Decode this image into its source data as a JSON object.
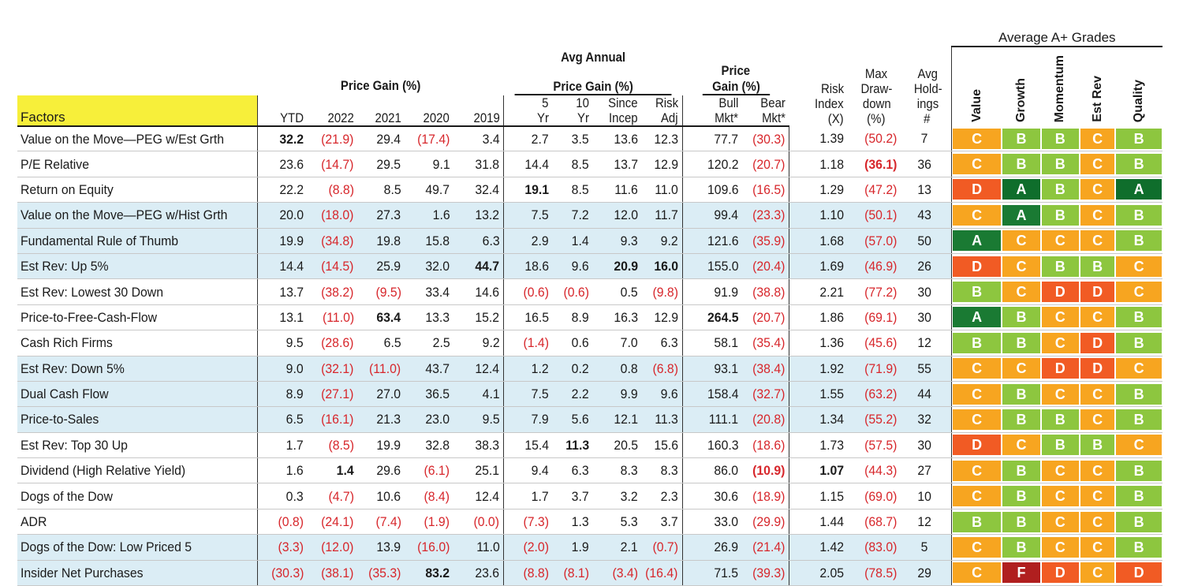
{
  "headers": {
    "factors": "Factors",
    "price_gain_group": "Price Gain (%)",
    "avg_annual_group_line1": "Avg Annual",
    "avg_annual_group_line2": "Price Gain (%)",
    "mkt_group_line1": "Price",
    "mkt_group_line2": "Gain (%)",
    "avg_grades_group": "Average A+ Grades",
    "ytd": "YTD",
    "y2022": "2022",
    "y2021": "2021",
    "y2020": "2020",
    "y2019": "2019",
    "yr5_1": "5",
    "yr5_2": "Yr",
    "yr10_1": "10",
    "yr10_2": "Yr",
    "since_1": "Since",
    "since_2": "Incep",
    "risk_adj_1": "Risk",
    "risk_adj_2": "Adj",
    "bull_1": "Bull",
    "bull_2": "Mkt*",
    "bear_1": "Bear",
    "bear_2": "Mkt*",
    "risk_index_1": "Risk",
    "risk_index_2": "Index",
    "risk_index_3": "(X)",
    "max_dd_1": "Max",
    "max_dd_2": "Draw-",
    "max_dd_3": "down",
    "max_dd_4": "(%)",
    "holdings_1": "Avg",
    "holdings_2": "Hold-",
    "holdings_3": "ings",
    "holdings_4": "#",
    "g_value": "Value",
    "g_growth": "Growth",
    "g_momentum": "Momentum",
    "g_estrev": "Est Rev",
    "g_quality": "Quality"
  },
  "rows": [
    {
      "name": "Value on the Move—PEG w/Est Grth",
      "ytd": "32.2",
      "y2022": "(21.9)",
      "y2021": "29.4",
      "y2020": "(17.4)",
      "y2019": "3.4",
      "yr5": "2.7",
      "yr10": "3.5",
      "since": "13.6",
      "riskadj": "12.3",
      "bull": "77.7",
      "bear": "(30.3)",
      "riskidx": "1.39",
      "maxdd": "(50.2)",
      "hold": "7",
      "grades": [
        "C",
        "B",
        "B",
        "C",
        "B"
      ]
    },
    {
      "name": "P/E Relative",
      "ytd": "23.6",
      "y2022": "(14.7)",
      "y2021": "29.5",
      "y2020": "9.1",
      "y2019": "31.8",
      "yr5": "14.4",
      "yr10": "8.5",
      "since": "13.7",
      "riskadj": "12.9",
      "bull": "120.2",
      "bear": "(20.7)",
      "riskidx": "1.18",
      "maxdd": "(36.1)",
      "hold": "36",
      "grades": [
        "C",
        "B",
        "B",
        "C",
        "B"
      ]
    },
    {
      "name": "Return on Equity",
      "ytd": "22.2",
      "y2022": "(8.8)",
      "y2021": "8.5",
      "y2020": "49.7",
      "y2019": "32.4",
      "yr5": "19.1",
      "yr10": "8.5",
      "since": "11.6",
      "riskadj": "11.0",
      "bull": "109.6",
      "bear": "(16.5)",
      "riskidx": "1.29",
      "maxdd": "(47.2)",
      "hold": "13",
      "grades": [
        "D",
        "A",
        "B",
        "C",
        "A"
      ]
    },
    {
      "name": "Value on the Move—PEG w/Hist Grth",
      "ytd": "20.0",
      "y2022": "(18.0)",
      "y2021": "27.3",
      "y2020": "1.6",
      "y2019": "13.2",
      "yr5": "7.5",
      "yr10": "7.2",
      "since": "12.0",
      "riskadj": "11.7",
      "bull": "99.4",
      "bear": "(23.3)",
      "riskidx": "1.10",
      "maxdd": "(50.1)",
      "hold": "43",
      "grades": [
        "C",
        "A",
        "B",
        "C",
        "B"
      ]
    },
    {
      "name": "Fundamental Rule of Thumb",
      "ytd": "19.9",
      "y2022": "(34.8)",
      "y2021": "19.8",
      "y2020": "15.8",
      "y2019": "6.3",
      "yr5": "2.9",
      "yr10": "1.4",
      "since": "9.3",
      "riskadj": "9.2",
      "bull": "121.6",
      "bear": "(35.9)",
      "riskidx": "1.68",
      "maxdd": "(57.0)",
      "hold": "50",
      "grades": [
        "A",
        "C",
        "C",
        "C",
        "B"
      ]
    },
    {
      "name": "Est Rev: Up 5%",
      "ytd": "14.4",
      "y2022": "(14.5)",
      "y2021": "25.9",
      "y2020": "32.0",
      "y2019": "44.7",
      "yr5": "18.6",
      "yr10": "9.6",
      "since": "20.9",
      "riskadj": "16.0",
      "bull": "155.0",
      "bear": "(20.4)",
      "riskidx": "1.69",
      "maxdd": "(46.9)",
      "hold": "26",
      "grades": [
        "D",
        "C",
        "B",
        "B",
        "C"
      ]
    },
    {
      "name": "Est Rev: Lowest 30 Down",
      "ytd": "13.7",
      "y2022": "(38.2)",
      "y2021": "(9.5)",
      "y2020": "33.4",
      "y2019": "14.6",
      "yr5": "(0.6)",
      "yr10": "(0.6)",
      "since": "0.5",
      "riskadj": "(9.8)",
      "bull": "91.9",
      "bear": "(38.8)",
      "riskidx": "2.21",
      "maxdd": "(77.2)",
      "hold": "30",
      "grades": [
        "B",
        "C",
        "D",
        "D",
        "C"
      ]
    },
    {
      "name": "Price-to-Free-Cash-Flow",
      "ytd": "13.1",
      "y2022": "(11.0)",
      "y2021": "63.4",
      "y2020": "13.3",
      "y2019": "15.2",
      "yr5": "16.5",
      "yr10": "8.9",
      "since": "16.3",
      "riskadj": "12.9",
      "bull": "264.5",
      "bear": "(20.7)",
      "riskidx": "1.86",
      "maxdd": "(69.1)",
      "hold": "30",
      "grades": [
        "A",
        "B",
        "C",
        "C",
        "B"
      ]
    },
    {
      "name": "Cash Rich Firms",
      "ytd": "9.5",
      "y2022": "(28.6)",
      "y2021": "6.5",
      "y2020": "2.5",
      "y2019": "9.2",
      "yr5": "(1.4)",
      "yr10": "0.6",
      "since": "7.0",
      "riskadj": "6.3",
      "bull": "58.1",
      "bear": "(35.4)",
      "riskidx": "1.36",
      "maxdd": "(45.6)",
      "hold": "12",
      "grades": [
        "B",
        "B",
        "C",
        "D",
        "B"
      ]
    },
    {
      "name": "Est Rev: Down 5%",
      "ytd": "9.0",
      "y2022": "(32.1)",
      "y2021": "(11.0)",
      "y2020": "43.7",
      "y2019": "12.4",
      "yr5": "1.2",
      "yr10": "0.2",
      "since": "0.8",
      "riskadj": "(6.8)",
      "bull": "93.1",
      "bear": "(38.4)",
      "riskidx": "1.92",
      "maxdd": "(71.9)",
      "hold": "55",
      "grades": [
        "C",
        "C",
        "D",
        "D",
        "C"
      ]
    },
    {
      "name": "Dual Cash Flow",
      "ytd": "8.9",
      "y2022": "(27.1)",
      "y2021": "27.0",
      "y2020": "36.5",
      "y2019": "4.1",
      "yr5": "7.5",
      "yr10": "2.2",
      "since": "9.9",
      "riskadj": "9.6",
      "bull": "158.4",
      "bear": "(32.7)",
      "riskidx": "1.55",
      "maxdd": "(63.2)",
      "hold": "44",
      "grades": [
        "C",
        "B",
        "C",
        "C",
        "B"
      ]
    },
    {
      "name": "Price-to-Sales",
      "ytd": "6.5",
      "y2022": "(16.1)",
      "y2021": "21.3",
      "y2020": "23.0",
      "y2019": "9.5",
      "yr5": "7.9",
      "yr10": "5.6",
      "since": "12.1",
      "riskadj": "11.3",
      "bull": "111.1",
      "bear": "(20.8)",
      "riskidx": "1.34",
      "maxdd": "(55.2)",
      "hold": "32",
      "grades": [
        "C",
        "B",
        "B",
        "C",
        "B"
      ]
    },
    {
      "name": "Est Rev: Top 30 Up",
      "ytd": "1.7",
      "y2022": "(8.5)",
      "y2021": "19.9",
      "y2020": "32.8",
      "y2019": "38.3",
      "yr5": "15.4",
      "yr10": "11.3",
      "since": "20.5",
      "riskadj": "15.6",
      "bull": "160.3",
      "bear": "(18.6)",
      "riskidx": "1.73",
      "maxdd": "(57.5)",
      "hold": "30",
      "grades": [
        "D",
        "C",
        "B",
        "B",
        "C"
      ]
    },
    {
      "name": "Dividend (High Relative Yield)",
      "ytd": "1.6",
      "y2022": "1.4",
      "y2021": "29.6",
      "y2020": "(6.1)",
      "y2019": "25.1",
      "yr5": "9.4",
      "yr10": "6.3",
      "since": "8.3",
      "riskadj": "8.3",
      "bull": "86.0",
      "bear": "(10.9)",
      "riskidx": "1.07",
      "maxdd": "(44.3)",
      "hold": "27",
      "grades": [
        "C",
        "B",
        "C",
        "C",
        "B"
      ]
    },
    {
      "name": "Dogs of the Dow",
      "ytd": "0.3",
      "y2022": "(4.7)",
      "y2021": "10.6",
      "y2020": "(8.4)",
      "y2019": "12.4",
      "yr5": "1.7",
      "yr10": "3.7",
      "since": "3.2",
      "riskadj": "2.3",
      "bull": "30.6",
      "bear": "(18.9)",
      "riskidx": "1.15",
      "maxdd": "(69.0)",
      "hold": "10",
      "grades": [
        "C",
        "B",
        "C",
        "C",
        "B"
      ]
    },
    {
      "name": "ADR",
      "ytd": "(0.8)",
      "y2022": "(24.1)",
      "y2021": "(7.4)",
      "y2020": "(1.9)",
      "y2019": "(0.0)",
      "yr5": "(7.3)",
      "yr10": "1.3",
      "since": "5.3",
      "riskadj": "3.7",
      "bull": "33.0",
      "bear": "(29.9)",
      "riskidx": "1.44",
      "maxdd": "(68.7)",
      "hold": "12",
      "grades": [
        "B",
        "B",
        "C",
        "C",
        "B"
      ]
    },
    {
      "name": "Dogs of the Dow: Low Priced 5",
      "ytd": "(3.3)",
      "y2022": "(12.0)",
      "y2021": "13.9",
      "y2020": "(16.0)",
      "y2019": "11.0",
      "yr5": "(2.0)",
      "yr10": "1.9",
      "since": "2.1",
      "riskadj": "(0.7)",
      "bull": "26.9",
      "bear": "(21.4)",
      "riskidx": "1.42",
      "maxdd": "(83.0)",
      "hold": "5",
      "grades": [
        "C",
        "B",
        "C",
        "C",
        "B"
      ]
    },
    {
      "name": "Insider Net Purchases",
      "ytd": "(30.3)",
      "y2022": "(38.1)",
      "y2021": "(35.3)",
      "y2020": "83.2",
      "y2019": "23.6",
      "yr5": "(8.8)",
      "yr10": "(8.1)",
      "since": "(3.4)",
      "riskadj": "(16.4)",
      "bull": "71.5",
      "bear": "(39.3)",
      "riskidx": "2.05",
      "maxdd": "(78.5)",
      "hold": "29",
      "grades": [
        "C",
        "F",
        "D",
        "C",
        "D"
      ]
    }
  ],
  "bold_cells": [
    [
      0,
      "ytd"
    ],
    [
      1,
      "maxdd"
    ],
    [
      2,
      "yr5"
    ],
    [
      5,
      "y2019"
    ],
    [
      5,
      "since"
    ],
    [
      5,
      "riskadj"
    ],
    [
      7,
      "y2021"
    ],
    [
      7,
      "bull"
    ],
    [
      12,
      "yr10"
    ],
    [
      13,
      "y2022"
    ],
    [
      13,
      "bear"
    ],
    [
      13,
      "riskidx"
    ],
    [
      17,
      "y2020"
    ]
  ],
  "shaded_rows": [
    3,
    4,
    5,
    9,
    10,
    11,
    16,
    17
  ],
  "colors": {
    "negative": "#d7262b",
    "shade": "#dbedf5",
    "factors_highlight": "#f7ef3a",
    "grade_A": "#1a7a33",
    "grade_A_dark": "#0f6e2c",
    "grade_B": "#8dc63f",
    "grade_C": "#f7a520",
    "grade_D": "#f15b24",
    "grade_F": "#b01f1f"
  }
}
